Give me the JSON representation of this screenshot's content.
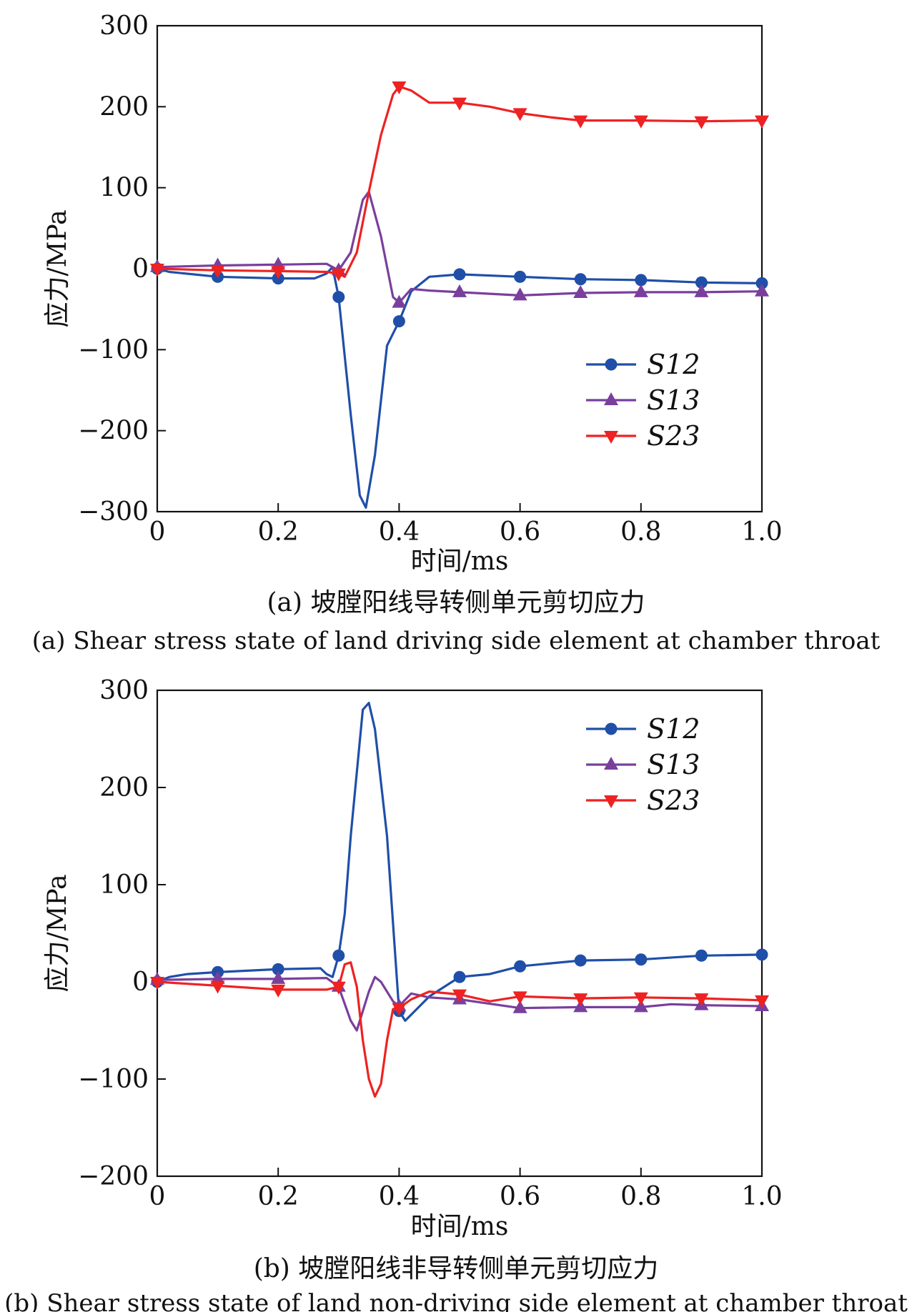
{
  "colors": {
    "S12": "#1f4fa8",
    "S13": "#7a3f9d",
    "S23": "#ee2222",
    "axis": "#111111"
  },
  "chart_data": [
    {
      "type": "line",
      "xlabel": "时间/ms",
      "ylabel": "应力/MPa",
      "xlim": [
        0,
        1.0
      ],
      "ylim": [
        -300,
        300
      ],
      "x_ticks": [
        "0",
        "0.2",
        "0.4",
        "0.6",
        "0.8",
        "1.0"
      ],
      "y_ticks": [
        "300",
        "200",
        "100",
        "0",
        "−100",
        "−200",
        "−300"
      ],
      "legend_position": "right-middle",
      "caption_cn": "(a) 坡膛阳线导转侧单元剪切应力",
      "caption_en": "(a) Shear stress state of land driving side element at chamber throat",
      "series": [
        {
          "name": "S12",
          "marker": "circle",
          "points": [
            [
              0,
              0
            ],
            [
              0.02,
              -4
            ],
            [
              0.1,
              -10
            ],
            [
              0.2,
              -12
            ],
            [
              0.26,
              -12
            ],
            [
              0.28,
              -6
            ],
            [
              0.29,
              2
            ],
            [
              0.3,
              -35
            ],
            [
              0.32,
              -180
            ],
            [
              0.335,
              -280
            ],
            [
              0.345,
              -295
            ],
            [
              0.36,
              -230
            ],
            [
              0.38,
              -95
            ],
            [
              0.4,
              -65
            ],
            [
              0.42,
              -28
            ],
            [
              0.45,
              -10
            ],
            [
              0.5,
              -7
            ],
            [
              0.6,
              -10
            ],
            [
              0.7,
              -13
            ],
            [
              0.8,
              -14
            ],
            [
              0.9,
              -17
            ],
            [
              1.0,
              -18
            ]
          ],
          "markers_x": [
            0,
            0.1,
            0.2,
            0.3,
            0.4,
            0.5,
            0.6,
            0.7,
            0.8,
            0.9,
            1.0
          ]
        },
        {
          "name": "S13",
          "marker": "triangle-up",
          "points": [
            [
              0,
              2
            ],
            [
              0.1,
              4
            ],
            [
              0.2,
              5
            ],
            [
              0.28,
              6
            ],
            [
              0.3,
              -2
            ],
            [
              0.32,
              20
            ],
            [
              0.34,
              85
            ],
            [
              0.35,
              95
            ],
            [
              0.37,
              40
            ],
            [
              0.39,
              -35
            ],
            [
              0.4,
              -42
            ],
            [
              0.42,
              -25
            ],
            [
              0.45,
              -27
            ],
            [
              0.5,
              -29
            ],
            [
              0.6,
              -33
            ],
            [
              0.7,
              -30
            ],
            [
              0.8,
              -29
            ],
            [
              0.9,
              -29
            ],
            [
              1.0,
              -28
            ]
          ],
          "markers_x": [
            0,
            0.1,
            0.2,
            0.3,
            0.4,
            0.5,
            0.6,
            0.7,
            0.8,
            0.9,
            1.0
          ]
        },
        {
          "name": "S23",
          "marker": "triangle-down",
          "points": [
            [
              0,
              0
            ],
            [
              0.1,
              -2
            ],
            [
              0.2,
              -3
            ],
            [
              0.28,
              -4
            ],
            [
              0.3,
              -6
            ],
            [
              0.31,
              -10
            ],
            [
              0.33,
              20
            ],
            [
              0.35,
              95
            ],
            [
              0.37,
              165
            ],
            [
              0.39,
              215
            ],
            [
              0.4,
              225
            ],
            [
              0.42,
              220
            ],
            [
              0.45,
              205
            ],
            [
              0.5,
              205
            ],
            [
              0.55,
              200
            ],
            [
              0.6,
              192
            ],
            [
              0.65,
              187
            ],
            [
              0.7,
              183
            ],
            [
              0.8,
              183
            ],
            [
              0.9,
              182
            ],
            [
              1.0,
              183
            ]
          ],
          "markers_x": [
            0,
            0.1,
            0.2,
            0.3,
            0.4,
            0.5,
            0.6,
            0.7,
            0.8,
            0.9,
            1.0
          ]
        }
      ]
    },
    {
      "type": "line",
      "xlabel": "时间/ms",
      "ylabel": "应力/MPa",
      "xlim": [
        0,
        1.0
      ],
      "ylim": [
        -200,
        300
      ],
      "x_ticks": [
        "0",
        "0.2",
        "0.4",
        "0.6",
        "0.8",
        "1.0"
      ],
      "y_ticks": [
        "300",
        "200",
        "100",
        "0",
        "−100",
        "−200"
      ],
      "legend_position": "top-right",
      "caption_cn": "(b) 坡膛阳线非导转侧单元剪切应力",
      "caption_en": "(b) Shear stress state of land non-driving side element at chamber throat",
      "series": [
        {
          "name": "S12",
          "marker": "circle",
          "points": [
            [
              0,
              0
            ],
            [
              0.02,
              5
            ],
            [
              0.05,
              8
            ],
            [
              0.1,
              10
            ],
            [
              0.2,
              13
            ],
            [
              0.27,
              14
            ],
            [
              0.28,
              8
            ],
            [
              0.29,
              5
            ],
            [
              0.3,
              27
            ],
            [
              0.31,
              70
            ],
            [
              0.32,
              150
            ],
            [
              0.34,
              280
            ],
            [
              0.35,
              287
            ],
            [
              0.36,
              260
            ],
            [
              0.38,
              150
            ],
            [
              0.39,
              60
            ],
            [
              0.4,
              -30
            ],
            [
              0.41,
              -40
            ],
            [
              0.45,
              -15
            ],
            [
              0.5,
              5
            ],
            [
              0.55,
              8
            ],
            [
              0.6,
              16
            ],
            [
              0.7,
              22
            ],
            [
              0.8,
              23
            ],
            [
              0.9,
              27
            ],
            [
              1.0,
              28
            ]
          ],
          "markers_x": [
            0,
            0.1,
            0.2,
            0.3,
            0.4,
            0.5,
            0.6,
            0.7,
            0.8,
            0.9,
            1.0
          ]
        },
        {
          "name": "S13",
          "marker": "triangle-up",
          "points": [
            [
              0,
              2
            ],
            [
              0.1,
              3
            ],
            [
              0.2,
              3
            ],
            [
              0.28,
              4
            ],
            [
              0.3,
              -5
            ],
            [
              0.32,
              -40
            ],
            [
              0.33,
              -50
            ],
            [
              0.35,
              -10
            ],
            [
              0.36,
              5
            ],
            [
              0.37,
              0
            ],
            [
              0.39,
              -20
            ],
            [
              0.4,
              -25
            ],
            [
              0.42,
              -12
            ],
            [
              0.45,
              -16
            ],
            [
              0.5,
              -18
            ],
            [
              0.6,
              -27
            ],
            [
              0.7,
              -26
            ],
            [
              0.8,
              -26
            ],
            [
              0.85,
              -23
            ],
            [
              0.9,
              -24
            ],
            [
              1.0,
              -25
            ]
          ],
          "markers_x": [
            0,
            0.1,
            0.2,
            0.3,
            0.4,
            0.5,
            0.6,
            0.7,
            0.8,
            0.9,
            1.0
          ]
        },
        {
          "name": "S23",
          "marker": "triangle-down",
          "points": [
            [
              0,
              0
            ],
            [
              0.1,
              -4
            ],
            [
              0.2,
              -8
            ],
            [
              0.28,
              -8
            ],
            [
              0.3,
              -5
            ],
            [
              0.31,
              18
            ],
            [
              0.32,
              20
            ],
            [
              0.33,
              -5
            ],
            [
              0.34,
              -60
            ],
            [
              0.35,
              -100
            ],
            [
              0.36,
              -118
            ],
            [
              0.37,
              -105
            ],
            [
              0.38,
              -60
            ],
            [
              0.39,
              -28
            ],
            [
              0.4,
              -27
            ],
            [
              0.42,
              -18
            ],
            [
              0.45,
              -10
            ],
            [
              0.5,
              -13
            ],
            [
              0.55,
              -20
            ],
            [
              0.6,
              -15
            ],
            [
              0.7,
              -17
            ],
            [
              0.8,
              -16
            ],
            [
              0.9,
              -17
            ],
            [
              1.0,
              -19
            ]
          ],
          "markers_x": [
            0,
            0.1,
            0.2,
            0.3,
            0.4,
            0.5,
            0.6,
            0.7,
            0.8,
            0.9,
            1.0
          ]
        }
      ]
    }
  ]
}
